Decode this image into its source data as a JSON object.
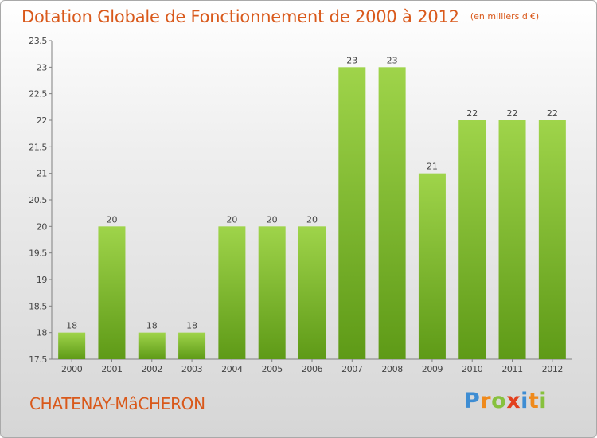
{
  "chart_data": {
    "type": "bar",
    "title": "Dotation Globale de Fonctionnement de 2000 à 2012",
    "unit": "(en milliers d'€)",
    "categories": [
      "2000",
      "2001",
      "2002",
      "2003",
      "2004",
      "2005",
      "2006",
      "2007",
      "2008",
      "2009",
      "2010",
      "2011",
      "2012"
    ],
    "values": [
      18,
      20,
      18,
      18,
      20,
      20,
      20,
      23,
      23,
      21,
      22,
      22,
      22
    ],
    "data_labels": [
      "18",
      "20",
      "18",
      "18",
      "20",
      "20",
      "20",
      "23",
      "23",
      "21",
      "22",
      "22",
      "22"
    ],
    "ylim": [
      17.5,
      23.5
    ],
    "yticks": [
      "17.5",
      "18",
      "18.5",
      "19",
      "19.5",
      "20",
      "20.5",
      "21",
      "21.5",
      "22",
      "22.5",
      "23",
      "23.5"
    ],
    "grid": false,
    "colors": {
      "bar_top": "#9fd44a",
      "bar_bottom": "#5e9a17",
      "title": "#d9591b",
      "axis": "#808080"
    }
  },
  "footer": {
    "city": "CHATENAY-MâCHERON",
    "brand_letters": [
      {
        "ch": "P",
        "color": "#3e8dd3"
      },
      {
        "ch": "r",
        "color": "#ef8a1c"
      },
      {
        "ch": "o",
        "color": "#87c13d"
      },
      {
        "ch": "x",
        "color": "#e2401e"
      },
      {
        "ch": "i",
        "color": "#3e8dd3"
      },
      {
        "ch": "t",
        "color": "#ef8a1c"
      },
      {
        "ch": "i",
        "color": "#87c13d"
      }
    ]
  }
}
